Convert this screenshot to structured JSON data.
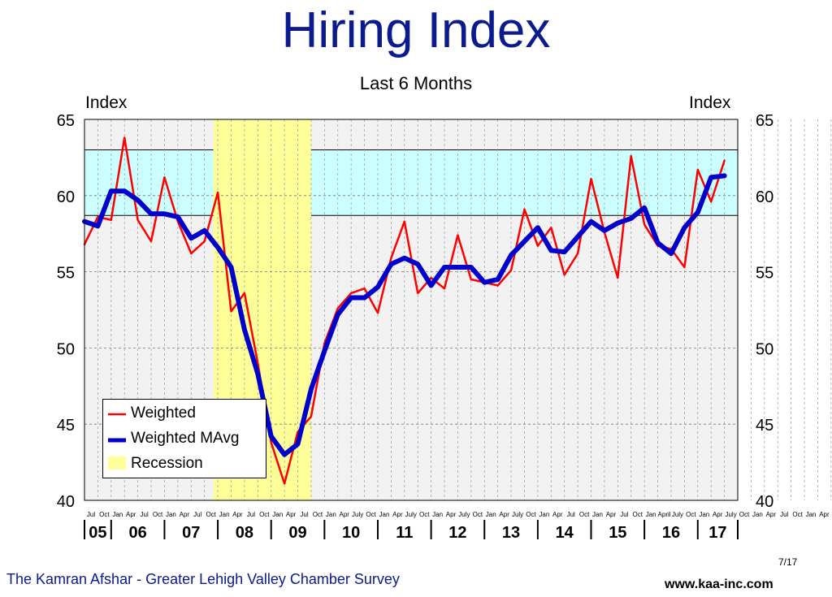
{
  "chart_data": {
    "type": "line",
    "title": "Hiring Index",
    "subtitle": "Last 6 Months",
    "ylabel_left": "Index",
    "ylabel_right": "Index",
    "ylim": [
      40,
      65
    ],
    "yticks": [
      40,
      45,
      50,
      55,
      60,
      65
    ],
    "grid": true,
    "x_start": "2005-07",
    "x_end": "2017-10",
    "x_tick_months": [
      "Jul",
      "Oct",
      "Jan",
      "Apr",
      "Jul",
      "Oct",
      "Jan",
      "Apr",
      "Jul",
      "Oct",
      "Jan",
      "Apr",
      "Jul",
      "Oct",
      "Jan",
      "Apr",
      "Jul",
      "Oct",
      "Jan",
      "Apr",
      "July",
      "Oct",
      "Jan",
      "Apr",
      "July",
      "Oct",
      "Jan",
      "Apr",
      "July",
      "Oct",
      "Jan",
      "Apr",
      "July",
      "Oct",
      "Jan",
      "Apr",
      "Jul",
      "Oct",
      "Jan",
      "Apr",
      "Jul",
      "Oct",
      "Jan",
      "April",
      "July",
      "Oct",
      "Jan",
      "Apr",
      "July",
      "Oct",
      "Jan",
      "Apr",
      "Jul",
      "Oct",
      "Jan",
      "Apr",
      "Jul",
      "Oct"
    ],
    "year_labels": [
      "05",
      "06",
      "07",
      "08",
      "09",
      "10",
      "11",
      "12",
      "13",
      "14",
      "15",
      "16",
      "17"
    ],
    "shaded_band": {
      "from": 58.7,
      "to": 63.0,
      "color": "#ccffff"
    },
    "recession": {
      "from": "2007-12",
      "to": "2009-10",
      "color": "#ffff99",
      "label": "Recession"
    },
    "series": [
      {
        "name": "Weighted",
        "color": "#ff0000",
        "x": [
          "2005-07",
          "2005-10",
          "2006-01",
          "2006-04",
          "2006-07",
          "2006-10",
          "2007-01",
          "2007-04",
          "2007-07",
          "2007-10",
          "2008-01",
          "2008-04",
          "2008-07",
          "2008-10",
          "2009-01",
          "2009-04",
          "2009-07",
          "2009-10",
          "2010-01",
          "2010-04",
          "2010-07",
          "2010-10",
          "2011-01",
          "2011-04",
          "2011-07",
          "2011-10",
          "2012-01",
          "2012-04",
          "2012-07",
          "2012-10",
          "2013-01",
          "2013-04",
          "2013-07",
          "2013-10",
          "2014-01",
          "2014-04",
          "2014-07",
          "2014-10",
          "2015-01",
          "2015-04",
          "2015-07",
          "2015-10",
          "2016-01",
          "2016-04",
          "2016-07",
          "2016-10",
          "2017-01",
          "2017-04",
          "2017-07"
        ],
        "values": [
          56.8,
          58.6,
          58.4,
          63.8,
          58.4,
          57.0,
          61.2,
          58.3,
          56.2,
          57.0,
          60.2,
          52.4,
          53.6,
          49.0,
          43.8,
          41.1,
          44.5,
          45.5,
          50.3,
          52.6,
          53.6,
          53.9,
          52.3,
          55.9,
          58.3,
          53.6,
          54.6,
          53.9,
          57.4,
          54.5,
          54.3,
          54.1,
          55.1,
          59.1,
          56.7,
          57.9,
          54.8,
          56.2,
          61.1,
          57.6,
          54.6,
          62.6,
          58.1,
          56.7,
          56.5,
          55.3,
          61.7,
          59.6,
          62.3
        ]
      },
      {
        "name": "Weighted MAvg",
        "color": "#0000cc",
        "x": [
          "2005-07",
          "2005-10",
          "2006-01",
          "2006-04",
          "2006-07",
          "2006-10",
          "2007-01",
          "2007-04",
          "2007-07",
          "2007-10",
          "2008-01",
          "2008-04",
          "2008-07",
          "2008-10",
          "2009-01",
          "2009-04",
          "2009-07",
          "2009-10",
          "2010-01",
          "2010-04",
          "2010-07",
          "2010-10",
          "2011-01",
          "2011-04",
          "2011-07",
          "2011-10",
          "2012-01",
          "2012-04",
          "2012-07",
          "2012-10",
          "2013-01",
          "2013-04",
          "2013-07",
          "2013-10",
          "2014-01",
          "2014-04",
          "2014-07",
          "2014-10",
          "2015-01",
          "2015-04",
          "2015-07",
          "2015-10",
          "2016-01",
          "2016-04",
          "2016-07",
          "2016-10",
          "2017-01",
          "2017-04",
          "2017-07"
        ],
        "values": [
          58.3,
          58.0,
          60.3,
          60.3,
          59.7,
          58.8,
          58.8,
          58.6,
          57.2,
          57.7,
          56.6,
          55.3,
          51.2,
          48.3,
          44.2,
          43.0,
          43.7,
          47.3,
          49.8,
          52.2,
          53.3,
          53.3,
          54.0,
          55.5,
          55.9,
          55.5,
          54.1,
          55.3,
          55.3,
          55.3,
          54.3,
          54.5,
          56.1,
          57.0,
          57.9,
          56.4,
          56.3,
          57.3,
          58.3,
          57.7,
          58.2,
          58.5,
          59.2,
          56.9,
          56.2,
          57.9,
          58.9,
          61.2,
          61.3
        ]
      }
    ]
  },
  "legend": {
    "items": [
      {
        "label": "Weighted",
        "color": "#ff0000",
        "kind": "line"
      },
      {
        "label": "Weighted MAvg",
        "color": "#0000cc",
        "kind": "thick-line"
      },
      {
        "label": "Recession",
        "color": "#ffff99",
        "kind": "swatch"
      }
    ]
  },
  "footer": {
    "left": "The Kamran Afshar - Greater Lehigh Valley Chamber Survey",
    "page": "7/17",
    "right": "www.kaa-inc.com"
  }
}
